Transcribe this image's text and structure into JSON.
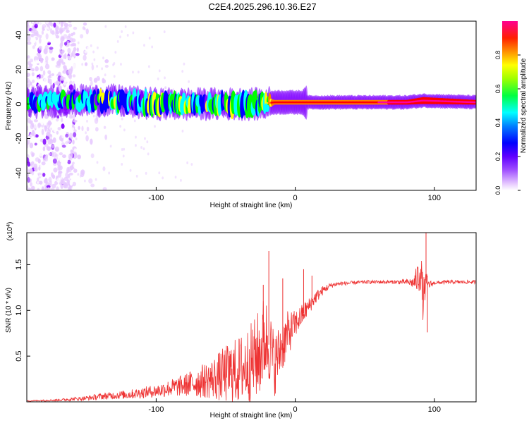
{
  "title": "C2E4.2025.296.10.36.E27",
  "chart_data": [
    {
      "type": "heatmap",
      "name": "spectrogram",
      "xlabel": "Height of straight line (km)",
      "ylabel": "Frequency (Hz)",
      "xlim": [
        -193,
        130
      ],
      "ylim": [
        -50,
        48
      ],
      "xticks": [
        -100,
        0,
        100
      ],
      "yticks": [
        -40,
        -20,
        0,
        20,
        40
      ],
      "colorbar": {
        "label": "Normalized spectral amplitude",
        "range": [
          0.0,
          1.0
        ],
        "ticks": [
          0.0,
          0.2,
          0.4,
          0.6,
          0.8
        ],
        "tick_labels": [
          "0.0",
          "0.2",
          "0.4",
          "0.6",
          "0.8"
        ],
        "colormap": [
          "#ffffff",
          "#e6c8ff",
          "#8000ff",
          "#0000ff",
          "#00ffff",
          "#00ff00",
          "#ffff00",
          "#ff8000",
          "#ff0000",
          "#ff00a0"
        ]
      },
      "band": [
        {
          "x": -190,
          "center_hz": 1,
          "halfwidth_hz": 5,
          "amplitude": 0.35
        },
        {
          "x": -160,
          "center_hz": 2,
          "halfwidth_hz": 5,
          "amplitude": 0.4
        },
        {
          "x": -130,
          "center_hz": 2,
          "halfwidth_hz": 6,
          "amplitude": 0.45
        },
        {
          "x": -100,
          "center_hz": 0,
          "halfwidth_hz": 7,
          "amplitude": 0.45
        },
        {
          "x": -70,
          "center_hz": 0,
          "halfwidth_hz": 6,
          "amplitude": 0.45
        },
        {
          "x": -45,
          "center_hz": 0,
          "halfwidth_hz": 7,
          "amplitude": 0.45
        },
        {
          "x": -25,
          "center_hz": 0,
          "halfwidth_hz": 8,
          "amplitude": 0.4
        },
        {
          "x": -15,
          "center_hz": 1,
          "halfwidth_hz": 2,
          "amplitude": 0.8
        },
        {
          "x": 10,
          "center_hz": 1,
          "halfwidth_hz": 2,
          "amplitude": 0.75
        },
        {
          "x": 40,
          "center_hz": 1,
          "halfwidth_hz": 2,
          "amplitude": 0.8
        },
        {
          "x": 80,
          "center_hz": 1,
          "halfwidth_hz": 2,
          "amplitude": 0.85
        },
        {
          "x": 92,
          "center_hz": 2,
          "halfwidth_hz": 3,
          "amplitude": 0.9
        },
        {
          "x": 130,
          "center_hz": 1,
          "halfwidth_hz": 2,
          "amplitude": 0.85
        }
      ],
      "noise_region_x": [
        -193,
        -135
      ]
    },
    {
      "type": "line",
      "name": "snr",
      "xlabel": "Height of straight line (km)",
      "ylabel": "SNR (10 * v/v)",
      "y_multiplier": "(x10",
      "y_exponent": "4",
      "y_multiplier_close": ")",
      "xlim": [
        -193,
        130
      ],
      "ylim": [
        0,
        18500
      ],
      "xticks": [
        -100,
        0,
        100
      ],
      "yticks": [
        5000,
        10000,
        15000
      ],
      "ytick_labels": [
        "0.5",
        "1.0",
        "1.5"
      ],
      "series": [
        {
          "name": "SNR",
          "color": "#ee3333",
          "x": [
            -193,
            -170,
            -150,
            -140,
            -120,
            -100,
            -80,
            -60,
            -50,
            -40,
            -30,
            -25,
            -22,
            -18,
            -15,
            -10,
            -5,
            0,
            5,
            10,
            15,
            20,
            25,
            30,
            40,
            50,
            60,
            70,
            80,
            85,
            88,
            90,
            92,
            94,
            96,
            100,
            110,
            120,
            130
          ],
          "y": [
            100,
            200,
            400,
            600,
            800,
            1200,
            1800,
            2500,
            3000,
            3500,
            4500,
            5500,
            7000,
            6000,
            4000,
            6000,
            7500,
            8500,
            9500,
            10500,
            11500,
            12200,
            12700,
            12900,
            13000,
            13100,
            13100,
            13100,
            13100,
            13000,
            13500,
            14500,
            11000,
            13300,
            12800,
            13000,
            13100,
            13100,
            13100
          ],
          "noise": [
            50,
            120,
            250,
            350,
            500,
            700,
            1200,
            2200,
            3200,
            3800,
            4500,
            5000,
            5000,
            4000,
            3500,
            3000,
            2500,
            1500,
            1200,
            900,
            700,
            500,
            300,
            250,
            200,
            200,
            200,
            200,
            300,
            600,
            1800,
            2500,
            2500,
            1000,
            500,
            200,
            200,
            200,
            200
          ]
        }
      ],
      "spikes": [
        {
          "x": -19,
          "y": 16500
        },
        {
          "x": -23,
          "y": 12800
        },
        {
          "x": -9,
          "y": 13500
        },
        {
          "x": 6,
          "y": 14500
        },
        {
          "x": 12,
          "y": 13800
        },
        {
          "x": 94,
          "y": 18500
        },
        {
          "x": 95,
          "y": 7600
        }
      ]
    }
  ]
}
